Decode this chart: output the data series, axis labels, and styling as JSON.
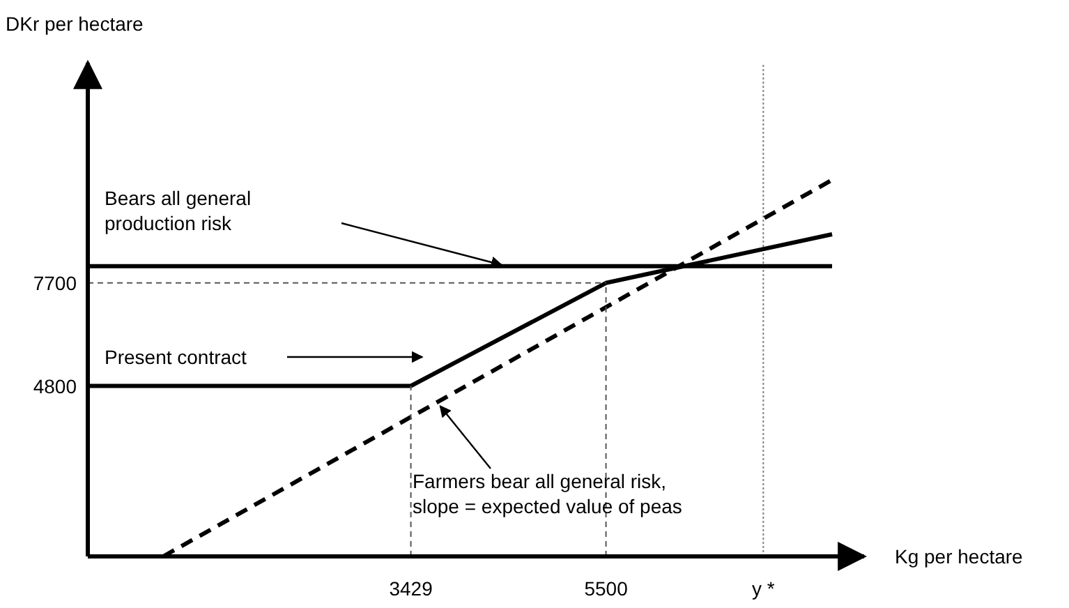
{
  "chart_data": {
    "type": "line",
    "xlabel": "Kg per hectare",
    "ylabel": "DKr per hectare",
    "xlim": [
      0,
      8240
    ],
    "ylim": [
      0,
      13900
    ],
    "xticks": [
      3429,
      5500,
      {
        "value": 7170,
        "label": "y *"
      }
    ],
    "yticks": [
      4800,
      7700
    ],
    "series": [
      {
        "color": "#000000",
        "line_style": "solid",
        "x": [
          0,
          3429,
          5500,
          7900
        ],
        "values": [
          4800,
          4800,
          7700,
          9070
        ]
      },
      {
        "color": "#000000",
        "line_style": "solid",
        "x": [
          0,
          7900
        ],
        "values": [
          8170,
          8170
        ]
      },
      {
        "color": "#000000",
        "line_style": "dashed",
        "x": [
          800,
          7900
        ],
        "values": [
          0,
          10600
        ]
      },
      {
        "color": "#555555",
        "line_style": "dotted",
        "x": [
          0,
          5500
        ],
        "values": [
          7700,
          7700
        ]
      },
      {
        "color": "#555555",
        "line_style": "dotted",
        "x": [
          3429,
          3429
        ],
        "values": [
          0,
          4800
        ]
      },
      {
        "color": "#555555",
        "line_style": "dotted",
        "x": [
          5500,
          5500
        ],
        "values": [
          0,
          7700
        ]
      }
    ],
    "ref_lines": [
      {
        "axis": "x",
        "value": 7170,
        "line_style": "dotted",
        "color": "#808080"
      }
    ],
    "annotations": [
      "Bears all general production risk",
      "Present contract",
      {
        "text": "Farmers bear all general risk, slope = expected value of peas",
        "x": 3740,
        "y": 4390
      }
    ]
  }
}
